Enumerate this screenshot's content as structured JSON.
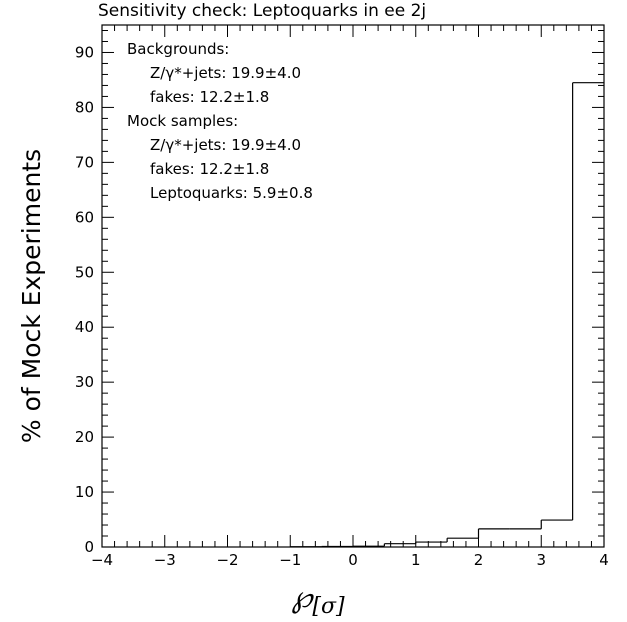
{
  "chart_data": {
    "type": "bar",
    "title": "Sensitivity check: Leptoquarks in ee 2j",
    "ylabel": "% of Mock Experiments",
    "xlabel": "℘",
    "xlabel_sub": "[σ]",
    "xlim": [
      -4,
      4
    ],
    "ylim": [
      0,
      95
    ],
    "x_ticks": [
      -4,
      -3,
      -2,
      -1,
      0,
      1,
      2,
      3,
      4
    ],
    "x_tick_labels": [
      "−4",
      "−3",
      "−2",
      "−1",
      "0",
      "1",
      "2",
      "3",
      "4"
    ],
    "y_ticks": [
      0,
      10,
      20,
      30,
      40,
      50,
      60,
      70,
      80,
      90
    ],
    "y_tick_labels": [
      "0",
      "10",
      "20",
      "30",
      "40",
      "50",
      "60",
      "70",
      "80",
      "90"
    ],
    "bin_edges": [
      -1.0,
      -0.5,
      0.0,
      0.5,
      1.0,
      1.5,
      2.0,
      2.5,
      3.0,
      3.5,
      4.0
    ],
    "values": [
      0.05,
      0.1,
      0.15,
      0.6,
      0.9,
      1.6,
      3.3,
      3.3,
      4.9,
      84.5
    ],
    "annotations": [
      {
        "text": "Backgrounds:",
        "indent": false
      },
      {
        "text": "Z/γ*+jets: 19.9±4.0",
        "indent": true
      },
      {
        "text": "fakes: 12.2±1.8",
        "indent": true
      },
      {
        "text": "Mock samples:",
        "indent": false
      },
      {
        "text": "Z/γ*+jets: 19.9±4.0",
        "indent": true
      },
      {
        "text": "fakes: 12.2±1.8",
        "indent": true
      },
      {
        "text": "Leptoquarks: 5.9±0.8",
        "indent": true
      }
    ]
  }
}
